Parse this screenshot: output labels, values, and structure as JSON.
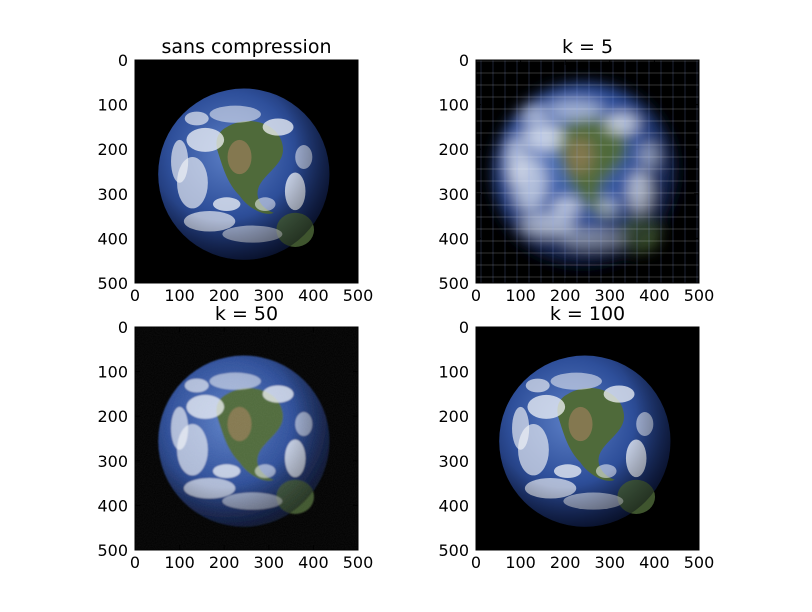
{
  "chart_data": [
    {
      "type": "image",
      "title": "sans compression",
      "xlim": [
        0,
        500
      ],
      "ylim": [
        500,
        0
      ],
      "xticks": [
        "0",
        "100",
        "200",
        "300",
        "400",
        "500"
      ],
      "yticks": [
        "0",
        "100",
        "200",
        "300",
        "400",
        "500"
      ],
      "image_quality": "sharp"
    },
    {
      "type": "image",
      "title": "k = 5",
      "xlim": [
        0,
        500
      ],
      "ylim": [
        500,
        0
      ],
      "xticks": [
        "0",
        "100",
        "200",
        "300",
        "400",
        "500"
      ],
      "yticks": [
        "0",
        "100",
        "200",
        "300",
        "400",
        "500"
      ],
      "image_quality": "heavily blurred"
    },
    {
      "type": "image",
      "title": "k = 50",
      "xlim": [
        0,
        500
      ],
      "ylim": [
        500,
        0
      ],
      "xticks": [
        "0",
        "100",
        "200",
        "300",
        "400",
        "500"
      ],
      "yticks": [
        "0",
        "100",
        "200",
        "300",
        "400",
        "500"
      ],
      "image_quality": "slightly noisy"
    },
    {
      "type": "image",
      "title": "k = 100",
      "xlim": [
        0,
        500
      ],
      "ylim": [
        500,
        0
      ],
      "xticks": [
        "0",
        "100",
        "200",
        "300",
        "400",
        "500"
      ],
      "yticks": [
        "0",
        "100",
        "200",
        "300",
        "400",
        "500"
      ],
      "image_quality": "near original"
    }
  ],
  "colors": {
    "background": "#000000",
    "ocean": "#2e4f9a",
    "ocean_dark": "#16275e",
    "land_green": "#4f6a3a",
    "land_tan": "#8d7a55",
    "cloud": "#f2f4f8"
  }
}
